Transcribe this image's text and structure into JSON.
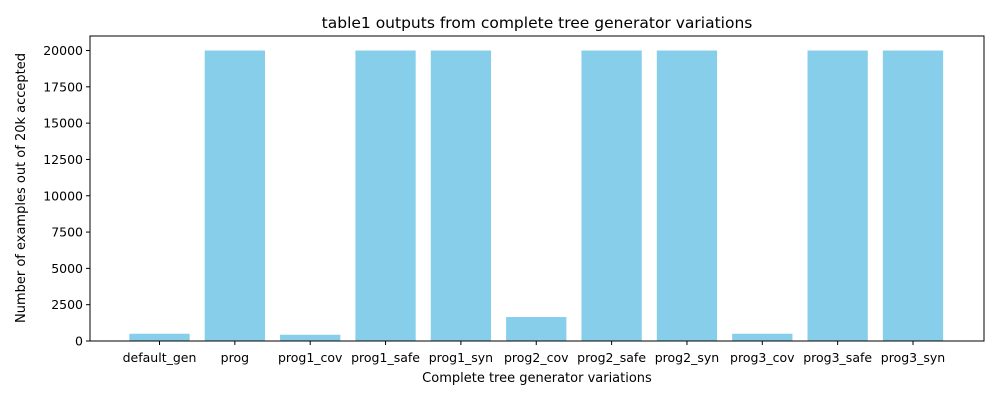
{
  "chart_data": {
    "type": "bar",
    "title": "table1 outputs from complete tree generator variations",
    "xlabel": "Complete tree generator variations",
    "ylabel": "Number of examples out of 20k accepted",
    "categories": [
      "default_gen",
      "prog",
      "prog1_cov",
      "prog1_safe",
      "prog1_syn",
      "prog2_cov",
      "prog2_safe",
      "prog2_syn",
      "prog3_cov",
      "prog3_safe",
      "prog3_syn"
    ],
    "values": [
      500,
      20000,
      430,
      20000,
      20000,
      1650,
      20000,
      20000,
      500,
      20000,
      20000
    ],
    "ylim": [
      0,
      21000
    ],
    "yticks": [
      0,
      2500,
      5000,
      7500,
      10000,
      12500,
      15000,
      17500,
      20000
    ],
    "bar_color": "#87CEEB",
    "grid": false,
    "legend": "none"
  }
}
